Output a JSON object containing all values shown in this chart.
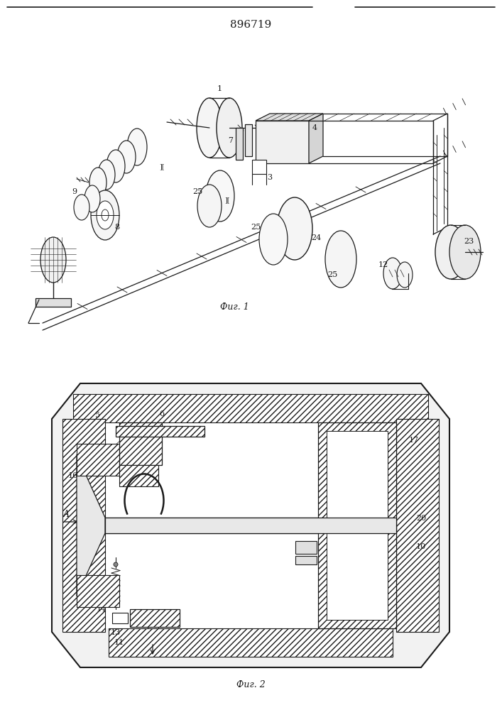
{
  "title": "896719",
  "fig1_label": "Фиг. 1",
  "fig2_label": "Фиг. 2",
  "bg": "#ffffff",
  "lc": "#1a1a1a",
  "fig_width": 7.07,
  "fig_height": 10.0
}
